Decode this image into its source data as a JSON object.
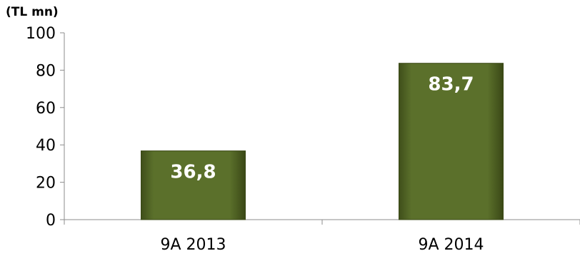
{
  "chart_data": {
    "type": "bar",
    "unit_label": "(TL mn)",
    "categories": [
      "9A 2013",
      "9A 2014"
    ],
    "values": [
      36.8,
      83.7
    ],
    "data_labels": [
      "36,8",
      "83,7"
    ],
    "ylim": [
      0,
      100
    ],
    "yticks": [
      0,
      20,
      40,
      60,
      80,
      100
    ],
    "ytick_labels": [
      "0",
      "20",
      "40",
      "60",
      "80",
      "100"
    ],
    "grid": false,
    "legend": "none",
    "bar_color": "#5a6e2a"
  }
}
